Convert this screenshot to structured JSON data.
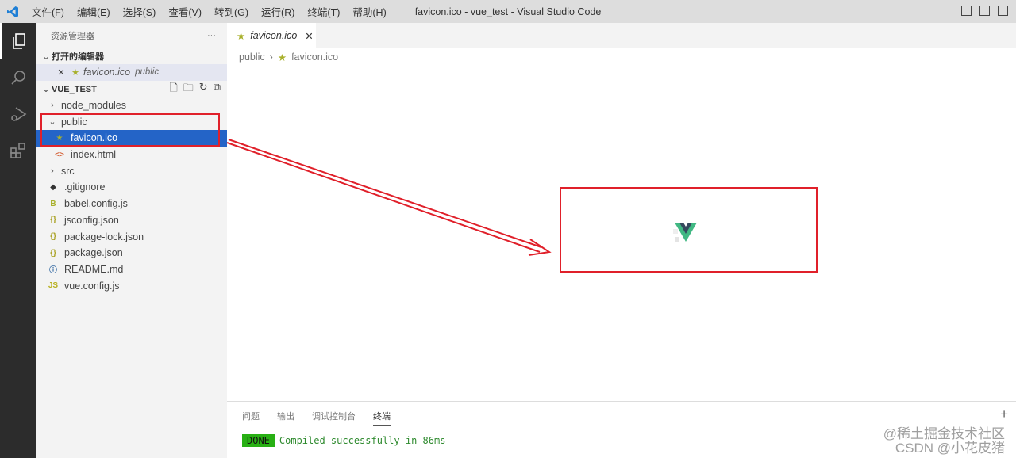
{
  "titlebar": {
    "menu": [
      "文件(F)",
      "编辑(E)",
      "选择(S)",
      "查看(V)",
      "转到(G)",
      "运行(R)",
      "终端(T)",
      "帮助(H)"
    ],
    "title": "favicon.ico - vue_test - Visual Studio Code"
  },
  "sidebar": {
    "title": "资源管理器",
    "more": "···",
    "open_editors": {
      "label": "打开的编辑器",
      "file": "favicon.ico",
      "folder": "public"
    },
    "project": "VUE_TEST",
    "tree": [
      {
        "name": "node_modules",
        "type": "folder",
        "icon": "chevron-right",
        "depth": 0
      },
      {
        "name": "public",
        "type": "folder",
        "icon": "chevron-down",
        "depth": 0
      },
      {
        "name": "favicon.ico",
        "type": "file",
        "icon": "star-icon",
        "depth": 1,
        "selected": true
      },
      {
        "name": "index.html",
        "type": "file",
        "icon": "html-icon",
        "depth": 1
      },
      {
        "name": "src",
        "type": "folder",
        "icon": "chevron-right",
        "depth": 0
      },
      {
        "name": ".gitignore",
        "type": "file",
        "icon": "git-icon",
        "depth": 0
      },
      {
        "name": "babel.config.js",
        "type": "file",
        "icon": "babel-icon",
        "depth": 0
      },
      {
        "name": "jsconfig.json",
        "type": "file",
        "icon": "json-icon",
        "depth": 0
      },
      {
        "name": "package-lock.json",
        "type": "file",
        "icon": "json-icon",
        "depth": 0
      },
      {
        "name": "package.json",
        "type": "file",
        "icon": "json-icon",
        "depth": 0
      },
      {
        "name": "README.md",
        "type": "file",
        "icon": "info-icon",
        "depth": 0
      },
      {
        "name": "vue.config.js",
        "type": "file",
        "icon": "js-icon",
        "depth": 0
      }
    ]
  },
  "editor": {
    "tab": "favicon.ico",
    "breadcrumb": [
      "public",
      "favicon.ico"
    ]
  },
  "panel": {
    "tabs": [
      "问题",
      "输出",
      "调试控制台",
      "终端"
    ],
    "active": "终端",
    "badge": "DONE",
    "message": "Compiled successfully in 86ms"
  },
  "watermark": {
    "line1": "@稀土掘金技术社区",
    "line2": "CSDN @小花皮猪"
  },
  "colors": {
    "selection": "#2464c7",
    "annotation": "#e0202a",
    "done": "#28b014"
  }
}
